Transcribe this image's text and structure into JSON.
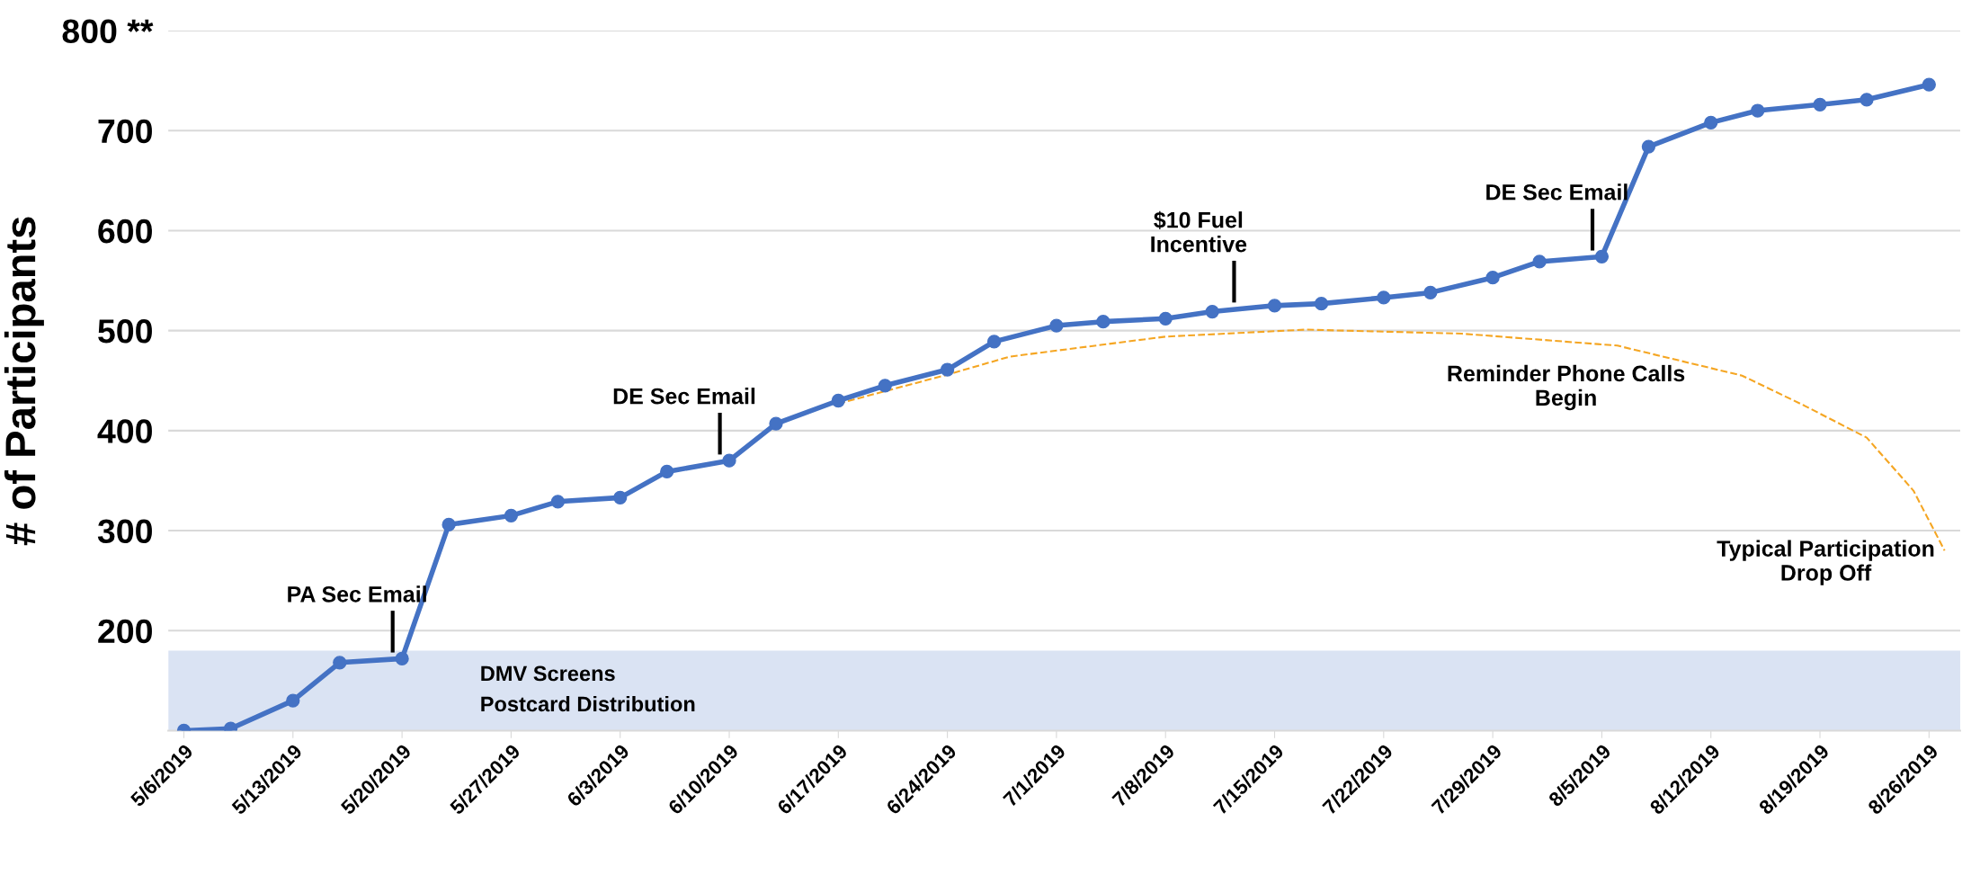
{
  "chart_data": {
    "type": "line",
    "ylabel": "# of Participants",
    "x": [
      "2019-05-06",
      "2019-05-09",
      "2019-05-13",
      "2019-05-16",
      "2019-05-20",
      "2019-05-23",
      "2019-05-27",
      "2019-05-30",
      "2019-06-03",
      "2019-06-06",
      "2019-06-10",
      "2019-06-13",
      "2019-06-17",
      "2019-06-20",
      "2019-06-24",
      "2019-06-27",
      "2019-07-01",
      "2019-07-04",
      "2019-07-08",
      "2019-07-11",
      "2019-07-15",
      "2019-07-18",
      "2019-07-22",
      "2019-07-25",
      "2019-07-29",
      "2019-08-01",
      "2019-08-05",
      "2019-08-08",
      "2019-08-12",
      "2019-08-15",
      "2019-08-19",
      "2019-08-22",
      "2019-08-26"
    ],
    "series": [
      {
        "color": "#4472c4",
        "marker": "circle",
        "line_style": "solid",
        "values": [
          100,
          102,
          130,
          168,
          172,
          306,
          315,
          329,
          333,
          359,
          370,
          407,
          430,
          445,
          461,
          489,
          505,
          509,
          512,
          519,
          525,
          527,
          533,
          538,
          553,
          569,
          574,
          684,
          708,
          720,
          726,
          731,
          746
        ]
      },
      {
        "color": "#f5a623",
        "marker": "none",
        "line_style": "dashed",
        "x": [
          "2019-06-17",
          "2019-06-24",
          "2019-06-28",
          "2019-07-08",
          "2019-07-17",
          "2019-07-27",
          "2019-08-06",
          "2019-08-14",
          "2019-08-18",
          "2019-08-22",
          "2019-08-25",
          "2019-08-27"
        ],
        "values": [
          427,
          456,
          474,
          494,
          501,
          497,
          485,
          455,
          425,
          393,
          340,
          280
        ]
      }
    ],
    "xlim": [
      "2019-05-05",
      "2019-08-28"
    ],
    "xticks": [
      {
        "value": "2019-05-06",
        "label": "5/6/2019"
      },
      {
        "value": "2019-05-13",
        "label": "5/13/2019"
      },
      {
        "value": "2019-05-20",
        "label": "5/20/2019"
      },
      {
        "value": "2019-05-27",
        "label": "5/27/2019"
      },
      {
        "value": "2019-06-03",
        "label": "6/3/2019"
      },
      {
        "value": "2019-06-10",
        "label": "6/10/2019"
      },
      {
        "value": "2019-06-17",
        "label": "6/17/2019"
      },
      {
        "value": "2019-06-24",
        "label": "6/24/2019"
      },
      {
        "value": "2019-07-01",
        "label": "7/1/2019"
      },
      {
        "value": "2019-07-08",
        "label": "7/8/2019"
      },
      {
        "value": "2019-07-15",
        "label": "7/15/2019"
      },
      {
        "value": "2019-07-22",
        "label": "7/22/2019"
      },
      {
        "value": "2019-07-29",
        "label": "7/29/2019"
      },
      {
        "value": "2019-08-05",
        "label": "8/5/2019"
      },
      {
        "value": "2019-08-12",
        "label": "8/12/2019"
      },
      {
        "value": "2019-08-19",
        "label": "8/19/2019"
      },
      {
        "value": "2019-08-26",
        "label": "8/26/2019"
      }
    ],
    "ylim": [
      100,
      800
    ],
    "yticks": [
      200,
      300,
      400,
      500,
      600,
      700,
      {
        "value": 800,
        "label": "800 **"
      }
    ],
    "grid": "y",
    "bands": [
      {
        "axis": "y",
        "from": 100,
        "to": 180,
        "label": "DMV Screens\nPostcard Distribution",
        "color": "#dae3f3"
      }
    ],
    "annotations": [
      {
        "text": "PA Sec Email",
        "x": "2019-05-20",
        "y": 172
      },
      {
        "text": "DE Sec Email",
        "x": "2019-06-10",
        "y": 370
      },
      {
        "text": "$10 Fuel\nIncentive",
        "x": "2019-07-13",
        "y": 522
      },
      {
        "text": "DE Sec Email",
        "x": "2019-08-05",
        "y": 574
      },
      "Reminder Phone Calls\nBegin",
      "Typical Participation\nDrop Off"
    ]
  }
}
